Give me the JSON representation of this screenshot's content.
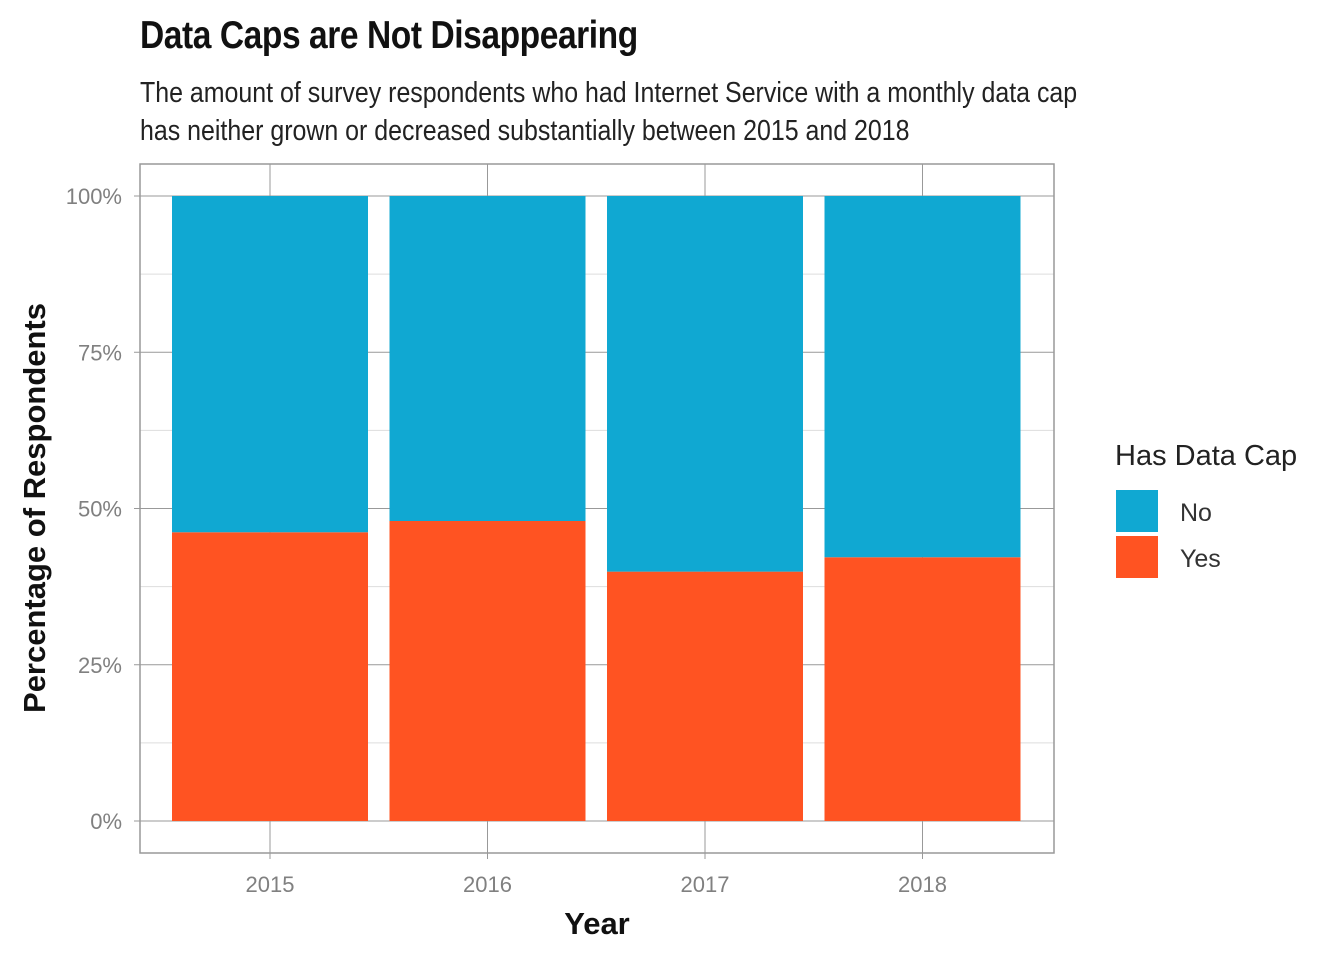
{
  "chart_data": {
    "type": "bar",
    "stacked": true,
    "percent": true,
    "title": "Data Caps are Not Disappearing",
    "subtitle_lines": [
      "The amount of survey respondents who had Internet Service with a monthly data cap",
      "has neither grown or decreased substantially between 2015 and 2018"
    ],
    "xlabel": "Year",
    "ylabel": "Percentage of Respondents",
    "categories": [
      "2015",
      "2016",
      "2017",
      "2018"
    ],
    "series": [
      {
        "name": "Yes",
        "color": "#FF5322",
        "values": [
          46.2,
          48.0,
          39.9,
          42.2
        ]
      },
      {
        "name": "No",
        "color": "#10A8D2",
        "values": [
          53.8,
          52.0,
          60.1,
          57.8
        ]
      }
    ],
    "ylim": [
      0,
      100
    ],
    "yticks": [
      0,
      25,
      50,
      75,
      100
    ],
    "ytick_labels": [
      "0%",
      "25%",
      "50%",
      "75%",
      "100%"
    ],
    "grid": true,
    "legend": {
      "title": "Has Data Cap",
      "placement": "right",
      "items": [
        {
          "label": "No",
          "color": "#10A8D2"
        },
        {
          "label": "Yes",
          "color": "#FF5322"
        }
      ]
    }
  }
}
